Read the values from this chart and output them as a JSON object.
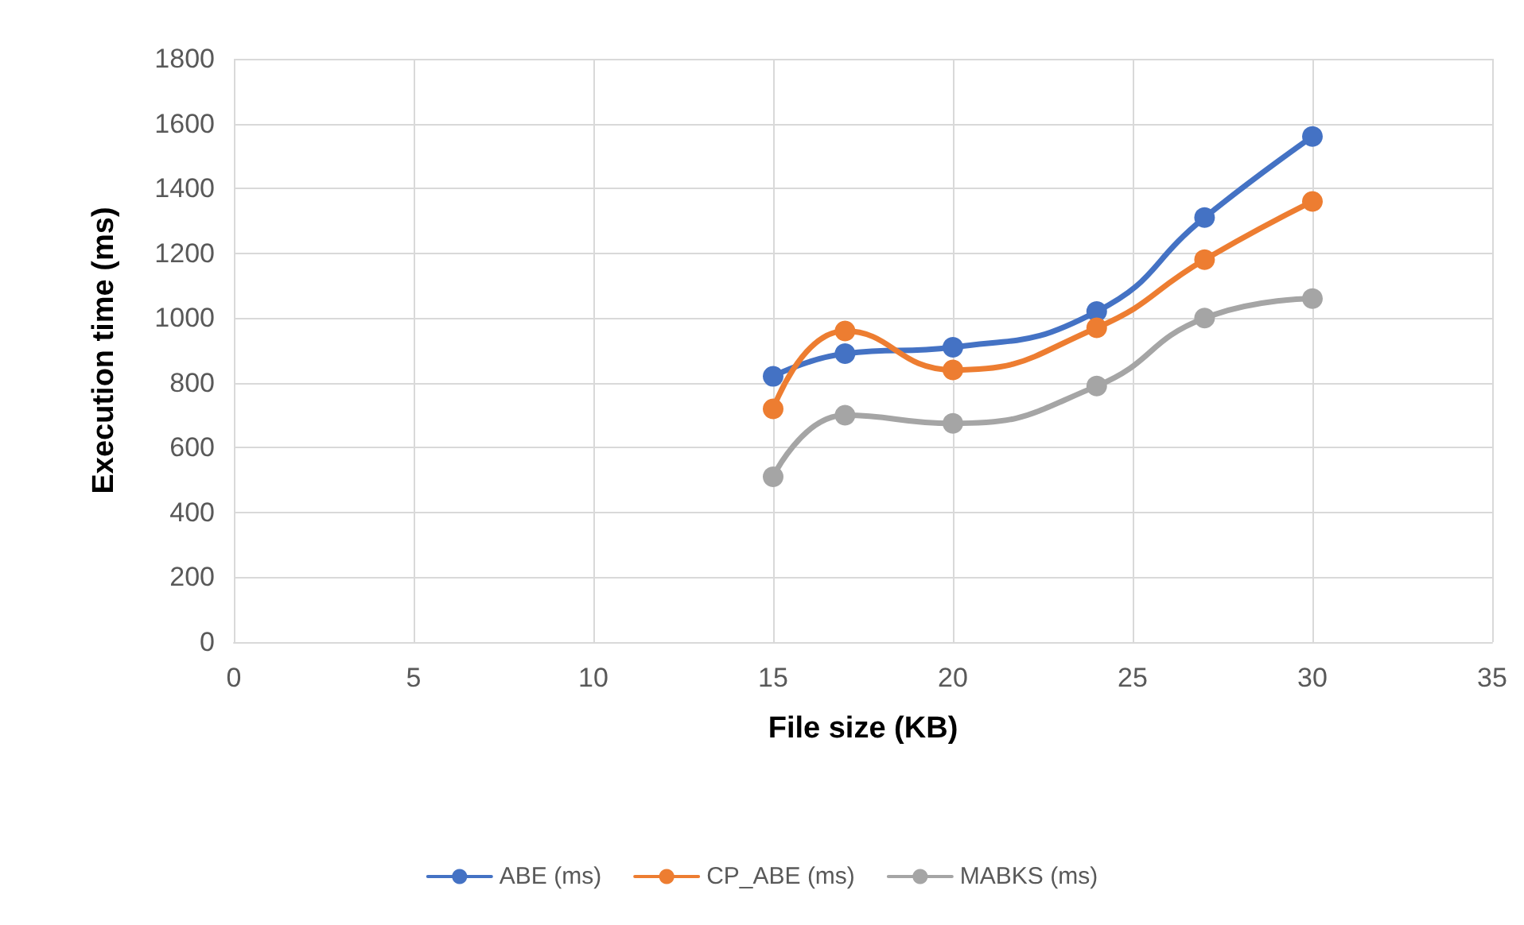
{
  "chart_data": {
    "type": "line",
    "xlabel": "File size (KB)",
    "ylabel": "Execution time (ms)",
    "x": [
      15,
      17,
      20,
      24,
      27,
      30
    ],
    "series": [
      {
        "name": "ABE (ms)",
        "color": "#4472c4",
        "values": [
          820,
          890,
          910,
          1020,
          1310,
          1560
        ]
      },
      {
        "name": "CP_ABE (ms)",
        "color": "#ed7d31",
        "values": [
          720,
          960,
          840,
          970,
          1180,
          1360
        ]
      },
      {
        "name": "MABKS (ms)",
        "color": "#a5a5a5",
        "values": [
          510,
          700,
          675,
          790,
          1000,
          1060
        ]
      }
    ],
    "xlim": [
      0,
      35
    ],
    "xticks": [
      0,
      5,
      10,
      15,
      20,
      25,
      30,
      35
    ],
    "ylim": [
      0,
      1800
    ],
    "yticks": [
      0,
      200,
      400,
      600,
      800,
      1000,
      1200,
      1400,
      1600,
      1800
    ],
    "grid": true,
    "legend": "bottom",
    "marker": "circle",
    "line_style": "solid"
  }
}
